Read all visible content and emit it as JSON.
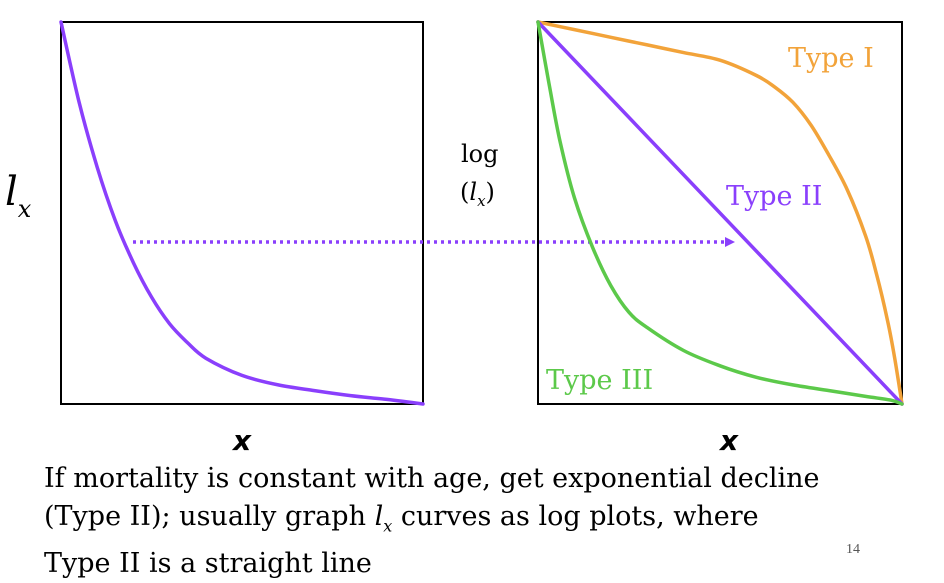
{
  "chart_data": [
    {
      "type": "line",
      "title": "",
      "ylabel": {
        "main": "l",
        "sub": "x"
      },
      "xlabel": "x",
      "grid": false,
      "xlim": [
        0,
        1
      ],
      "ylim": [
        0,
        1
      ],
      "series": [
        {
          "color": "#8a3ffc",
          "x": [
            0.0,
            0.05,
            0.1,
            0.15,
            0.2,
            0.25,
            0.3,
            0.35,
            0.4,
            0.5,
            0.6,
            0.7,
            0.8,
            0.9,
            1.0
          ],
          "y": [
            1.0,
            0.79,
            0.62,
            0.48,
            0.37,
            0.28,
            0.21,
            0.16,
            0.12,
            0.075,
            0.05,
            0.035,
            0.022,
            0.012,
            0.0
          ]
        }
      ]
    },
    {
      "type": "line",
      "title": "",
      "ylabel": {
        "main": "log",
        "sub": "x",
        "open": "(",
        "close": ")",
        "mid": "l"
      },
      "xlabel": "x",
      "grid": false,
      "xlim": [
        0,
        1
      ],
      "ylim": [
        0,
        1
      ],
      "series": [
        {
          "name": "Type I",
          "color": "#f2a33a",
          "x": [
            0.0,
            0.1,
            0.2,
            0.3,
            0.4,
            0.5,
            0.6,
            0.65,
            0.7,
            0.75,
            0.8,
            0.85,
            0.9,
            0.93,
            0.96,
            0.98,
            1.0
          ],
          "y": [
            1.0,
            0.98,
            0.96,
            0.94,
            0.92,
            0.9,
            0.86,
            0.83,
            0.79,
            0.73,
            0.65,
            0.56,
            0.44,
            0.34,
            0.22,
            0.12,
            0.0
          ]
        },
        {
          "name": "Type II",
          "color": "#8a3ffc",
          "x": [
            0.0,
            1.0
          ],
          "y": [
            1.0,
            0.0
          ]
        },
        {
          "name": "Type III",
          "color": "#5cc94a",
          "x": [
            0.0,
            0.03,
            0.06,
            0.1,
            0.15,
            0.2,
            0.25,
            0.3,
            0.4,
            0.5,
            0.6,
            0.7,
            0.8,
            0.9,
            0.97,
            1.0
          ],
          "y": [
            1.0,
            0.84,
            0.69,
            0.54,
            0.41,
            0.31,
            0.24,
            0.2,
            0.14,
            0.1,
            0.07,
            0.05,
            0.035,
            0.02,
            0.01,
            0.0
          ]
        }
      ]
    }
  ],
  "caption": {
    "line1": "If mortality is constant with age, get exponential decline",
    "line2_before": "(Type II); usually graph ",
    "lx_main": "l",
    "lx_sub": "x",
    "line2_after": " curves as log plots, where",
    "line3": "Type II is a straight line"
  },
  "page_number": "14"
}
